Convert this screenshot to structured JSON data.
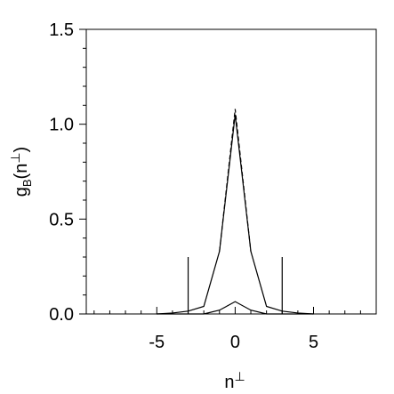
{
  "chart_data": {
    "type": "line",
    "xlabel": {
      "base": "n",
      "sup": "⊥"
    },
    "ylabel": {
      "base": "g",
      "sub": "B",
      "open": "(n",
      "sup": "⊥",
      "close": ")"
    },
    "xlim": [
      -9.5,
      9
    ],
    "ylim": [
      0,
      1.5
    ],
    "xticks": [
      -5,
      0,
      5
    ],
    "yticks": [
      {
        "value": 0,
        "label": "0.0"
      },
      {
        "value": 0.5,
        "label": "0.5"
      },
      {
        "value": 1,
        "label": "1.0"
      },
      {
        "value": 1.5,
        "label": "1.5"
      }
    ],
    "xminor": [
      -9,
      -8,
      -7,
      -6,
      -4,
      -3,
      -2,
      -1,
      1,
      2,
      3,
      4,
      6,
      7,
      8,
      9
    ],
    "yminor": [
      0.1,
      0.2,
      0.3,
      0.4,
      0.6,
      0.7,
      0.8,
      0.9,
      1.1,
      1.2,
      1.3,
      1.4
    ],
    "series": [
      {
        "color": "#000000",
        "dash": false,
        "x": [
          -5,
          -4,
          -3,
          -2,
          -1,
          0,
          1,
          2,
          3,
          4,
          5
        ],
        "values": [
          0,
          0.005,
          0.015,
          0.04,
          0.33,
          1.05,
          0.33,
          0.04,
          0.015,
          0.005,
          0
        ]
      },
      {
        "color": "#000000",
        "dash": true,
        "x": [
          -1,
          0,
          1
        ],
        "values": [
          0.33,
          1.08,
          0.33
        ]
      },
      {
        "color": "#000000",
        "dash": false,
        "x": [
          -5,
          -2,
          -1,
          0,
          1,
          2,
          5
        ],
        "values": [
          0,
          0,
          0.02,
          0.065,
          0.02,
          0,
          0
        ]
      },
      {
        "color": "#000000",
        "dash": false,
        "x": [
          -3,
          -3
        ],
        "values": [
          0,
          0.3
        ]
      },
      {
        "color": "#000000",
        "dash": false,
        "x": [
          3,
          3
        ],
        "values": [
          0,
          0.3
        ]
      }
    ]
  }
}
